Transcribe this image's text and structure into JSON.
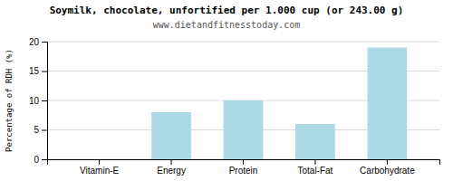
{
  "chart_data": {
    "type": "bar",
    "title": "Soymilk, chocolate, unfortified per 1.000 cup (or 243.00 g)",
    "subtitle": "www.dietandfitnesstoday.com",
    "categories": [
      "Vitamin-E",
      "Energy",
      "Protein",
      "Total-Fat",
      "Carbohydrate"
    ],
    "values": [
      0,
      8,
      10,
      6,
      19
    ],
    "color": "#add8e6",
    "ylim": [
      0,
      20
    ],
    "yticks": [
      0,
      5,
      10,
      15,
      20
    ],
    "ylabel": "Percentage of RDH (%)",
    "grid": true
  }
}
